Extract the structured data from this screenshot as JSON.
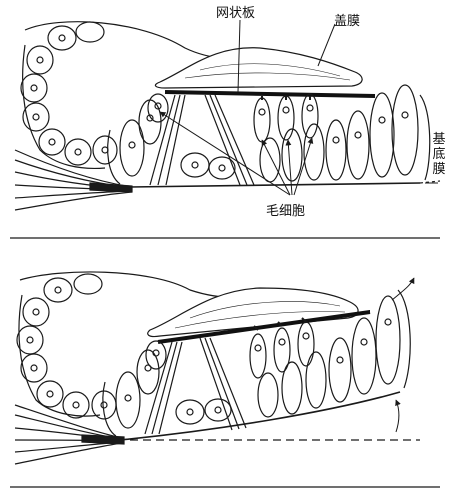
{
  "labels": {
    "reticular_lamina": "网状板",
    "tectorial_membrane": "盖膜",
    "hair_cells": "毛细胞",
    "basilar_membrane": [
      "基",
      "底",
      "膜"
    ]
  },
  "panels": [
    {
      "state": "rest"
    },
    {
      "state": "displaced"
    }
  ],
  "colors": {
    "ink": "#1a1a1a",
    "fill": "#ffffff",
    "lamina": "#111111"
  }
}
